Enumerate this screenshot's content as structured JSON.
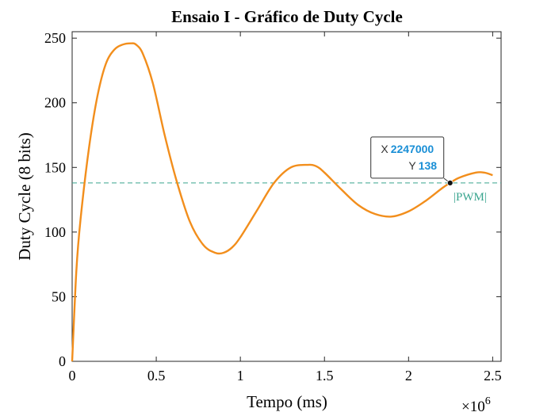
{
  "chart_data": {
    "type": "line",
    "title": "Ensaio I - Gráfico de Duty Cycle",
    "xlabel": "Tempo (ms)",
    "ylabel": "Duty Cycle (8 bits)",
    "x_multiplier_base": "×10",
    "x_multiplier_exp": "6",
    "xlim": [
      0,
      2550000
    ],
    "ylim": [
      0,
      255
    ],
    "xticks": [
      0,
      500000,
      1000000,
      1500000,
      2000000,
      2500000
    ],
    "xtick_labels": [
      "0",
      "0.5",
      "1",
      "1.5",
      "2",
      "2.5"
    ],
    "yticks": [
      0,
      50,
      100,
      150,
      200,
      250
    ],
    "ytick_labels": [
      "0",
      "50",
      "100",
      "150",
      "200",
      "250"
    ],
    "grid": false,
    "colors": {
      "signal": "#f28e1c",
      "reference": "#3aa58f",
      "datatip_value": "#1a8fd6"
    },
    "series": [
      {
        "x": [
          0,
          25000,
          50000,
          100000,
          150000,
          200000,
          250000,
          300000,
          350000,
          380000,
          420000,
          480000,
          550000,
          620000,
          700000,
          780000,
          850000,
          900000,
          950000,
          1000000,
          1100000,
          1200000,
          1300000,
          1400000,
          1450000,
          1500000,
          1600000,
          1700000,
          1800000,
          1900000,
          2000000,
          2100000,
          2200000,
          2247000,
          2300000,
          2400000,
          2450000,
          2500000
        ],
        "values": [
          0,
          70,
          110,
          165,
          205,
          230,
          241,
          245,
          246,
          245,
          238,
          215,
          175,
          140,
          108,
          90,
          84,
          84,
          88,
          96,
          117,
          138,
          150,
          152,
          151,
          146,
          133,
          121,
          114,
          112,
          116,
          124,
          134,
          138,
          142,
          146,
          146,
          144
        ]
      },
      {
        "name": "|PWM|",
        "x": [
          0,
          2550000
        ],
        "values": [
          138,
          138
        ]
      }
    ],
    "datatip": {
      "x_label": "X",
      "x_value": "2247000",
      "y_label": "Y",
      "y_value": "138"
    }
  }
}
